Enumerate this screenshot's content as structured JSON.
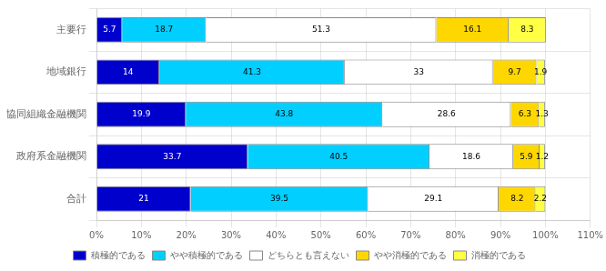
{
  "chart_data": {
    "type": "bar",
    "orientation": "horizontal",
    "stacked": true,
    "categories": [
      "主要行",
      "地域銀行",
      "協同組織金融機関",
      "政府系金融機関",
      "合計"
    ],
    "series": [
      {
        "name": "積極的である",
        "color": "#0000CD",
        "values": [
          5.7,
          14.0,
          19.9,
          33.7,
          21.0
        ]
      },
      {
        "name": "やや積極的である",
        "color": "#00CFFF",
        "values": [
          18.7,
          41.3,
          43.8,
          40.5,
          39.5
        ]
      },
      {
        "name": "どちらとも言えない",
        "color": "#FFFFFF",
        "values": [
          51.3,
          33.0,
          28.6,
          18.6,
          29.1
        ]
      },
      {
        "name": "やや消極的である",
        "color": "#FFD700",
        "values": [
          16.1,
          9.7,
          6.3,
          5.9,
          8.2
        ]
      },
      {
        "name": "消極的である",
        "color": "#FFFF44",
        "values": [
          8.3,
          1.9,
          1.3,
          1.2,
          2.2
        ]
      }
    ],
    "xlim": [
      0,
      110
    ],
    "xticks": [
      {
        "value": 0,
        "label": "0%"
      },
      {
        "value": 10,
        "label": "10%"
      },
      {
        "value": 20,
        "label": "20%"
      },
      {
        "value": 30,
        "label": "30%"
      },
      {
        "value": 40,
        "label": "40%"
      },
      {
        "value": 50,
        "label": "50%"
      },
      {
        "value": 60,
        "label": "60%"
      },
      {
        "value": 70,
        "label": "70%"
      },
      {
        "value": 80,
        "label": "80%"
      },
      {
        "value": 90,
        "label": "90%"
      },
      {
        "value": 100,
        "label": "100%"
      },
      {
        "value": 110,
        "label": "110%"
      }
    ],
    "grid": true,
    "legend": "bottom",
    "data_labels": true
  }
}
